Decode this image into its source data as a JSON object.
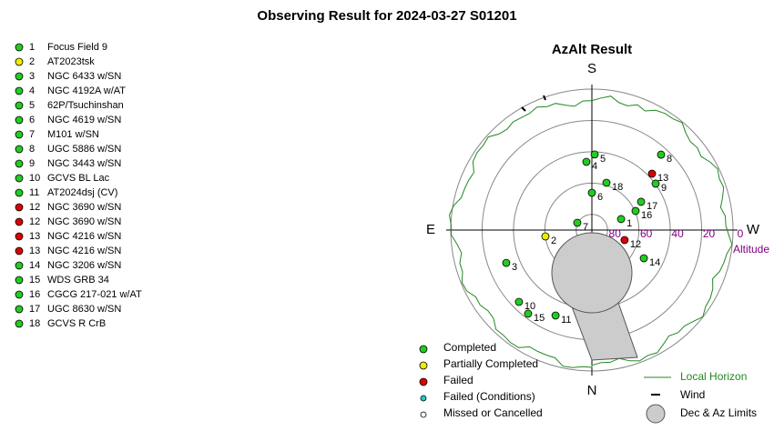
{
  "chart_data": {
    "type": "polar",
    "title": "Observing Result for 2024-03-27  S01201",
    "subtitle": "AzAlt Result",
    "rlabel": "Altitude",
    "rlim": [
      90,
      0
    ],
    "rticks": [
      80,
      60,
      40,
      20,
      0
    ],
    "directions": [
      {
        "label": "S",
        "az": 180
      },
      {
        "label": "E",
        "az": 90
      },
      {
        "label": "W",
        "az": 270
      },
      {
        "label": "N",
        "az": 0
      }
    ],
    "statuses": [
      {
        "name": "Completed",
        "color": "#22cc22"
      },
      {
        "name": "Partially Completed",
        "color": "#eeee00"
      },
      {
        "name": "Failed",
        "color": "#dd0000"
      },
      {
        "name": "Failed (Conditions)",
        "color": "#22cccc"
      },
      {
        "name": "Missed or Cancelled",
        "color": "#ffffff"
      }
    ],
    "overlays": [
      {
        "name": "Local Horizon",
        "color": "#228822"
      },
      {
        "name": "Wind",
        "color": "#000000"
      },
      {
        "name": "Dec & Az Limits",
        "color": "#cccccc"
      }
    ],
    "targets": [
      {
        "id": 1,
        "name": "Focus Field 9",
        "status": "Completed"
      },
      {
        "id": 2,
        "name": "AT2023tsk",
        "status": "Partially Completed"
      },
      {
        "id": 3,
        "name": "NGC 6433 w/SN",
        "status": "Completed"
      },
      {
        "id": 4,
        "name": "NGC 4192A w/AT",
        "status": "Completed"
      },
      {
        "id": 5,
        "name": "62P/Tsuchinshan",
        "status": "Completed"
      },
      {
        "id": 6,
        "name": "NGC 4619 w/SN",
        "status": "Completed"
      },
      {
        "id": 7,
        "name": "M101 w/SN",
        "status": "Completed"
      },
      {
        "id": 8,
        "name": "UGC 5886 w/SN",
        "status": "Completed"
      },
      {
        "id": 9,
        "name": "NGC 3443 w/SN",
        "status": "Completed"
      },
      {
        "id": 10,
        "name": "GCVS BL Lac",
        "status": "Completed"
      },
      {
        "id": 11,
        "name": "AT2024dsj (CV)",
        "status": "Completed"
      },
      {
        "id": 12,
        "name": "NGC 3690 w/SN",
        "status": "Failed"
      },
      {
        "id": 12,
        "name": "NGC 3690 w/SN",
        "status": "Failed"
      },
      {
        "id": 13,
        "name": "NGC 4216 w/SN",
        "status": "Failed"
      },
      {
        "id": 13,
        "name": "NGC 4216 w/SN",
        "status": "Failed"
      },
      {
        "id": 14,
        "name": "NGC 3206 w/SN",
        "status": "Completed"
      },
      {
        "id": 15,
        "name": "WDS GRB 34",
        "status": "Completed"
      },
      {
        "id": 16,
        "name": "CGCG 217-021 w/AT",
        "status": "Completed"
      },
      {
        "id": 17,
        "name": "UGC 8630 w/SN",
        "status": "Completed"
      },
      {
        "id": 18,
        "name": "GCVS R CrB",
        "status": "Completed"
      }
    ],
    "points": [
      {
        "label": 1,
        "az": 249.4,
        "alt": 70.1,
        "status": "Completed"
      },
      {
        "label": 2,
        "az": 82.2,
        "alt": 60.1,
        "status": "Partially Completed"
      },
      {
        "label": 3,
        "az": 69.0,
        "alt": 31.5,
        "status": "Completed"
      },
      {
        "label": 4,
        "az": 175.4,
        "alt": 46.3,
        "status": "Completed"
      },
      {
        "label": 5,
        "az": 182.1,
        "alt": 41.7,
        "status": "Completed"
      },
      {
        "label": 6,
        "az": 180.0,
        "alt": 66.2,
        "status": "Completed"
      },
      {
        "label": 7,
        "az": 116.6,
        "alt": 79.6,
        "status": "Completed"
      },
      {
        "label": 8,
        "az": 222.5,
        "alt": 24.7,
        "status": "Completed"
      },
      {
        "label": 9,
        "az": 233.9,
        "alt": 39.7,
        "status": "Completed"
      },
      {
        "label": 10,
        "az": 45.4,
        "alt": 24.7,
        "status": "Completed"
      },
      {
        "label": 11,
        "az": 23.0,
        "alt": 30.7,
        "status": "Completed"
      },
      {
        "label": 12,
        "az": 287.0,
        "alt": 68.2,
        "status": "Failed"
      },
      {
        "label": 13,
        "az": 226.8,
        "alt": 37.4,
        "status": "Failed"
      },
      {
        "label": 14,
        "az": 298.5,
        "alt": 52.3,
        "status": "Completed"
      },
      {
        "label": 15,
        "az": 37.3,
        "alt": 22.9,
        "status": "Completed"
      },
      {
        "label": 16,
        "az": 246.4,
        "alt": 59.6,
        "status": "Completed"
      },
      {
        "label": 17,
        "az": 240.1,
        "alt": 53.8,
        "status": "Completed"
      },
      {
        "label": 18,
        "az": 197.1,
        "alt": 58.4,
        "status": "Completed"
      }
    ]
  }
}
